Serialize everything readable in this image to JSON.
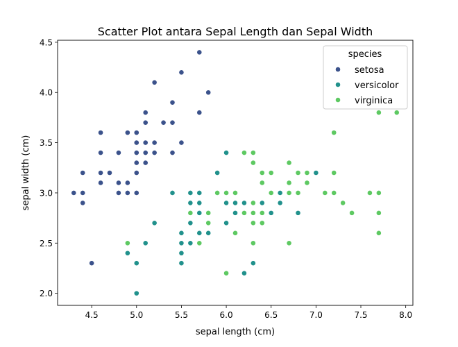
{
  "chart_data": {
    "type": "scatter",
    "title": "Scatter Plot antara Sepal Length dan Sepal Width",
    "xlabel": "sepal length (cm)",
    "ylabel": "sepal width (cm)",
    "xlim": [
      4.12,
      8.08
    ],
    "ylim": [
      1.88,
      4.52
    ],
    "xticks": [
      4.5,
      5.0,
      5.5,
      6.0,
      6.5,
      7.0,
      7.5,
      8.0
    ],
    "xtick_labels": [
      "4.5",
      "5.0",
      "5.5",
      "6.0",
      "6.5",
      "7.0",
      "7.5",
      "8.0"
    ],
    "yticks": [
      2.0,
      2.5,
      3.0,
      3.5,
      4.0,
      4.5
    ],
    "ytick_labels": [
      "2.0",
      "2.5",
      "3.0",
      "3.5",
      "4.0",
      "4.5"
    ],
    "grid": false,
    "legend": {
      "title": "species",
      "placement": "top-right"
    },
    "series": [
      {
        "name": "setosa",
        "color": "#3b528b",
        "points": [
          [
            5.1,
            3.5
          ],
          [
            4.9,
            3.0
          ],
          [
            4.7,
            3.2
          ],
          [
            4.6,
            3.1
          ],
          [
            5.0,
            3.6
          ],
          [
            5.4,
            3.9
          ],
          [
            4.6,
            3.4
          ],
          [
            5.0,
            3.4
          ],
          [
            4.4,
            2.9
          ],
          [
            4.9,
            3.1
          ],
          [
            5.4,
            3.7
          ],
          [
            4.8,
            3.4
          ],
          [
            4.8,
            3.0
          ],
          [
            4.3,
            3.0
          ],
          [
            5.8,
            4.0
          ],
          [
            5.7,
            4.4
          ],
          [
            5.4,
            3.9
          ],
          [
            5.1,
            3.5
          ],
          [
            5.7,
            3.8
          ],
          [
            5.1,
            3.8
          ],
          [
            5.4,
            3.4
          ],
          [
            5.1,
            3.7
          ],
          [
            4.6,
            3.6
          ],
          [
            5.1,
            3.3
          ],
          [
            4.8,
            3.4
          ],
          [
            5.0,
            3.0
          ],
          [
            5.0,
            3.4
          ],
          [
            5.2,
            3.5
          ],
          [
            5.2,
            3.4
          ],
          [
            4.7,
            3.2
          ],
          [
            4.8,
            3.1
          ],
          [
            5.4,
            3.4
          ],
          [
            5.2,
            4.1
          ],
          [
            5.5,
            4.2
          ],
          [
            4.9,
            3.1
          ],
          [
            5.0,
            3.2
          ],
          [
            5.5,
            3.5
          ],
          [
            4.9,
            3.6
          ],
          [
            4.4,
            3.0
          ],
          [
            5.1,
            3.4
          ],
          [
            5.0,
            3.5
          ],
          [
            4.5,
            2.3
          ],
          [
            4.4,
            3.2
          ],
          [
            5.0,
            3.5
          ],
          [
            5.1,
            3.8
          ],
          [
            4.8,
            3.0
          ],
          [
            5.1,
            3.8
          ],
          [
            4.6,
            3.2
          ],
          [
            5.3,
            3.7
          ],
          [
            5.0,
            3.3
          ]
        ]
      },
      {
        "name": "versicolor",
        "color": "#21918c",
        "points": [
          [
            7.0,
            3.2
          ],
          [
            6.4,
            3.2
          ],
          [
            6.9,
            3.1
          ],
          [
            5.5,
            2.3
          ],
          [
            6.5,
            2.8
          ],
          [
            5.7,
            2.8
          ],
          [
            6.3,
            3.3
          ],
          [
            4.9,
            2.4
          ],
          [
            6.6,
            2.9
          ],
          [
            5.2,
            2.7
          ],
          [
            5.0,
            2.0
          ],
          [
            5.9,
            3.0
          ],
          [
            6.0,
            2.2
          ],
          [
            6.1,
            2.9
          ],
          [
            5.6,
            2.9
          ],
          [
            6.7,
            3.1
          ],
          [
            5.6,
            3.0
          ],
          [
            5.8,
            2.7
          ],
          [
            6.2,
            2.2
          ],
          [
            5.6,
            2.5
          ],
          [
            5.9,
            3.2
          ],
          [
            6.1,
            2.8
          ],
          [
            6.3,
            2.5
          ],
          [
            6.1,
            2.8
          ],
          [
            6.4,
            2.9
          ],
          [
            6.6,
            3.0
          ],
          [
            6.8,
            2.8
          ],
          [
            6.7,
            3.0
          ],
          [
            6.0,
            2.9
          ],
          [
            5.7,
            2.6
          ],
          [
            5.5,
            2.4
          ],
          [
            5.5,
            2.4
          ],
          [
            5.8,
            2.7
          ],
          [
            6.0,
            2.7
          ],
          [
            5.4,
            3.0
          ],
          [
            6.0,
            3.4
          ],
          [
            6.7,
            3.1
          ],
          [
            6.3,
            2.3
          ],
          [
            5.6,
            3.0
          ],
          [
            5.5,
            2.5
          ],
          [
            5.5,
            2.6
          ],
          [
            6.1,
            3.0
          ],
          [
            5.8,
            2.6
          ],
          [
            5.0,
            2.3
          ],
          [
            5.6,
            2.7
          ],
          [
            5.7,
            3.0
          ],
          [
            5.7,
            2.9
          ],
          [
            6.2,
            2.9
          ],
          [
            5.1,
            2.5
          ],
          [
            5.7,
            2.8
          ]
        ]
      },
      {
        "name": "virginica",
        "color": "#5ec962",
        "points": [
          [
            6.3,
            3.3
          ],
          [
            5.8,
            2.7
          ],
          [
            7.1,
            3.0
          ],
          [
            6.3,
            2.9
          ],
          [
            6.5,
            3.0
          ],
          [
            7.6,
            3.0
          ],
          [
            4.9,
            2.5
          ],
          [
            7.3,
            2.9
          ],
          [
            6.7,
            2.5
          ],
          [
            7.2,
            3.6
          ],
          [
            6.5,
            3.2
          ],
          [
            6.4,
            2.7
          ],
          [
            6.8,
            3.0
          ],
          [
            5.7,
            2.5
          ],
          [
            5.8,
            2.8
          ],
          [
            6.4,
            3.2
          ],
          [
            6.5,
            3.0
          ],
          [
            7.7,
            3.8
          ],
          [
            7.7,
            2.6
          ],
          [
            6.0,
            2.2
          ],
          [
            6.9,
            3.2
          ],
          [
            5.6,
            2.8
          ],
          [
            7.7,
            2.8
          ],
          [
            6.3,
            2.7
          ],
          [
            6.7,
            3.3
          ],
          [
            7.2,
            3.2
          ],
          [
            6.2,
            2.8
          ],
          [
            6.1,
            3.0
          ],
          [
            6.4,
            2.8
          ],
          [
            7.2,
            3.0
          ],
          [
            7.4,
            2.8
          ],
          [
            7.9,
            3.8
          ],
          [
            6.4,
            2.8
          ],
          [
            6.3,
            2.8
          ],
          [
            6.1,
            2.6
          ],
          [
            7.7,
            3.0
          ],
          [
            6.3,
            3.4
          ],
          [
            6.4,
            3.1
          ],
          [
            6.0,
            3.0
          ],
          [
            6.9,
            3.1
          ],
          [
            6.7,
            3.1
          ],
          [
            6.9,
            3.1
          ],
          [
            5.8,
            2.7
          ],
          [
            6.8,
            3.2
          ],
          [
            6.7,
            3.3
          ],
          [
            6.7,
            3.0
          ],
          [
            6.3,
            2.5
          ],
          [
            6.5,
            3.0
          ],
          [
            6.2,
            3.4
          ],
          [
            5.9,
            3.0
          ]
        ]
      }
    ]
  }
}
